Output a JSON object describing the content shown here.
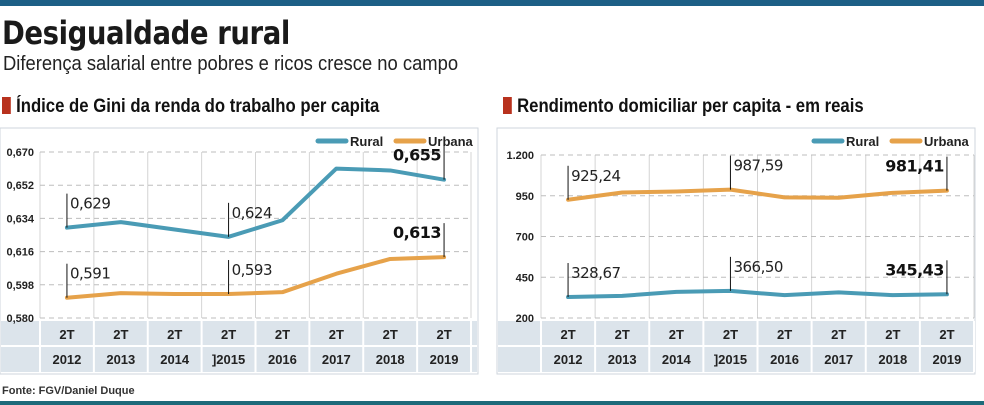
{
  "header": {
    "title": "Desigualdade rural",
    "subtitle": "Diferença salarial entre pobres e ricos cresce no campo"
  },
  "source": "Fonte: FGV/Daniel Duque",
  "colors": {
    "rural": "#4a9bb5",
    "urbana": "#e6a24a",
    "accent": "#b8321e",
    "topbar": "#1d5f86",
    "table_bg": "#dce4eb"
  },
  "chart_data": [
    {
      "type": "line",
      "title": "Índice de Gini da renda do trabalho per capita",
      "legend": [
        "Rural",
        "Urbana"
      ],
      "legend_position": "top-right",
      "grid": true,
      "ylim": [
        0.58,
        0.67
      ],
      "yticks": [
        "0,670",
        "0,652",
        "0,634",
        "0,616",
        "0,598",
        "0,580"
      ],
      "ytick_values": [
        0.67,
        0.652,
        0.634,
        0.616,
        0.598,
        0.58
      ],
      "quarter_labels": [
        "2T",
        "2T",
        "2T",
        "2T",
        "2T",
        "2T",
        "2T",
        "2T"
      ],
      "categories": [
        "2012",
        "2013",
        "2014",
        "]2015",
        "2016",
        "2017",
        "2018",
        "2019"
      ],
      "series": [
        {
          "name": "Rural",
          "values": [
            0.629,
            0.632,
            0.628,
            0.624,
            0.633,
            0.661,
            0.66,
            0.655
          ],
          "annotations": [
            {
              "index": 0,
              "label": "0,629"
            },
            {
              "index": 3,
              "label": "0,624"
            },
            {
              "index": 7,
              "label": "0,655",
              "bold": true
            }
          ]
        },
        {
          "name": "Urbana",
          "values": [
            0.591,
            0.5935,
            0.593,
            0.593,
            0.594,
            0.604,
            0.612,
            0.613
          ],
          "annotations": [
            {
              "index": 0,
              "label": "0,591"
            },
            {
              "index": 3,
              "label": "0,593"
            },
            {
              "index": 7,
              "label": "0,613",
              "bold": true
            }
          ]
        }
      ]
    },
    {
      "type": "line",
      "title": "Rendimento domiciliar per capita - em reais",
      "legend": [
        "Rural",
        "Urbana"
      ],
      "legend_position": "top-right",
      "grid": true,
      "ylim": [
        200,
        1200
      ],
      "yticks": [
        "1.200",
        "950",
        "700",
        "450",
        "200"
      ],
      "ytick_values": [
        1200,
        950,
        700,
        450,
        200
      ],
      "quarter_labels": [
        "2T",
        "2T",
        "2T",
        "2T",
        "2T",
        "2T",
        "2T",
        "2T"
      ],
      "categories": [
        "2012",
        "2013",
        "2014",
        "]2015",
        "2016",
        "2017",
        "2018",
        "2019"
      ],
      "series": [
        {
          "name": "Rural",
          "values": [
            328.67,
            336,
            360,
            366.5,
            340,
            357,
            340,
            345.43
          ],
          "annotations": [
            {
              "index": 0,
              "label": "328,67"
            },
            {
              "index": 3,
              "label": "366,50"
            },
            {
              "index": 7,
              "label": "345,43",
              "bold": true
            }
          ]
        },
        {
          "name": "Urbana",
          "values": [
            925.24,
            970,
            976,
            987.59,
            940,
            938,
            968,
            981.41
          ],
          "annotations": [
            {
              "index": 0,
              "label": "925,24"
            },
            {
              "index": 3,
              "label": "987,59"
            },
            {
              "index": 7,
              "label": "981,41",
              "bold": true
            }
          ]
        }
      ]
    }
  ]
}
